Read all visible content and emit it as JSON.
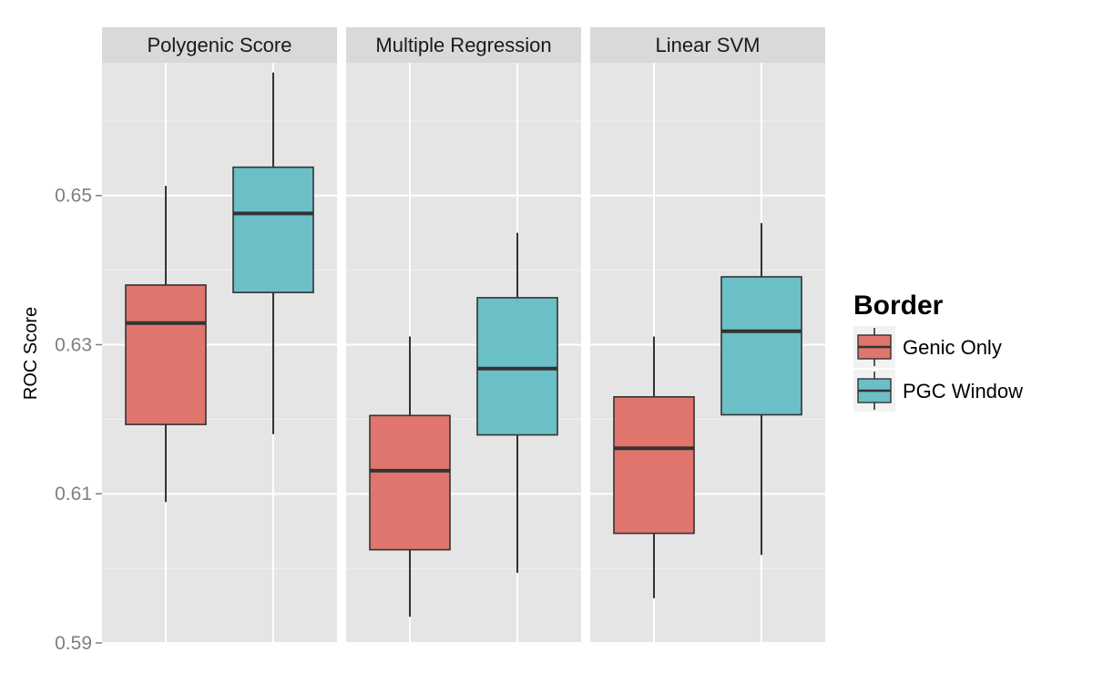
{
  "chart_data": {
    "type": "boxplot",
    "title": "",
    "xlabel": "",
    "ylabel": "ROC Score",
    "ylim": [
      0.59,
      0.6678
    ],
    "yticks": [
      0.59,
      0.61,
      0.63,
      0.65
    ],
    "ytick_labels": [
      "0.59",
      "0.61",
      "0.63",
      "0.65"
    ],
    "grid": true,
    "legend": {
      "title": "Border",
      "position": "right",
      "entries": [
        "Genic Only",
        "PGC Window"
      ]
    },
    "colors": {
      "Genic Only": "#E0756E",
      "PGC Window": "#6BBFC6"
    },
    "facets": [
      {
        "label": "Polygenic Score",
        "boxes": [
          {
            "group": "Genic Only",
            "min": 0.6089,
            "q1": 0.6193,
            "median": 0.6329,
            "q3": 0.638,
            "max": 0.6513
          },
          {
            "group": "PGC Window",
            "min": 0.618,
            "q1": 0.637,
            "median": 0.6476,
            "q3": 0.6538,
            "max": 0.6665
          }
        ]
      },
      {
        "label": "Multiple Regression",
        "boxes": [
          {
            "group": "Genic Only",
            "min": 0.5935,
            "q1": 0.6025,
            "median": 0.6131,
            "q3": 0.6205,
            "max": 0.6311
          },
          {
            "group": "PGC Window",
            "min": 0.5994,
            "q1": 0.6179,
            "median": 0.6268,
            "q3": 0.6363,
            "max": 0.645
          }
        ]
      },
      {
        "label": "Linear SVM",
        "boxes": [
          {
            "group": "Genic Only",
            "min": 0.596,
            "q1": 0.6047,
            "median": 0.6161,
            "q3": 0.623,
            "max": 0.6311
          },
          {
            "group": "PGC Window",
            "min": 0.6018,
            "q1": 0.6206,
            "median": 0.6318,
            "q3": 0.6391,
            "max": 0.6463
          }
        ]
      }
    ]
  }
}
